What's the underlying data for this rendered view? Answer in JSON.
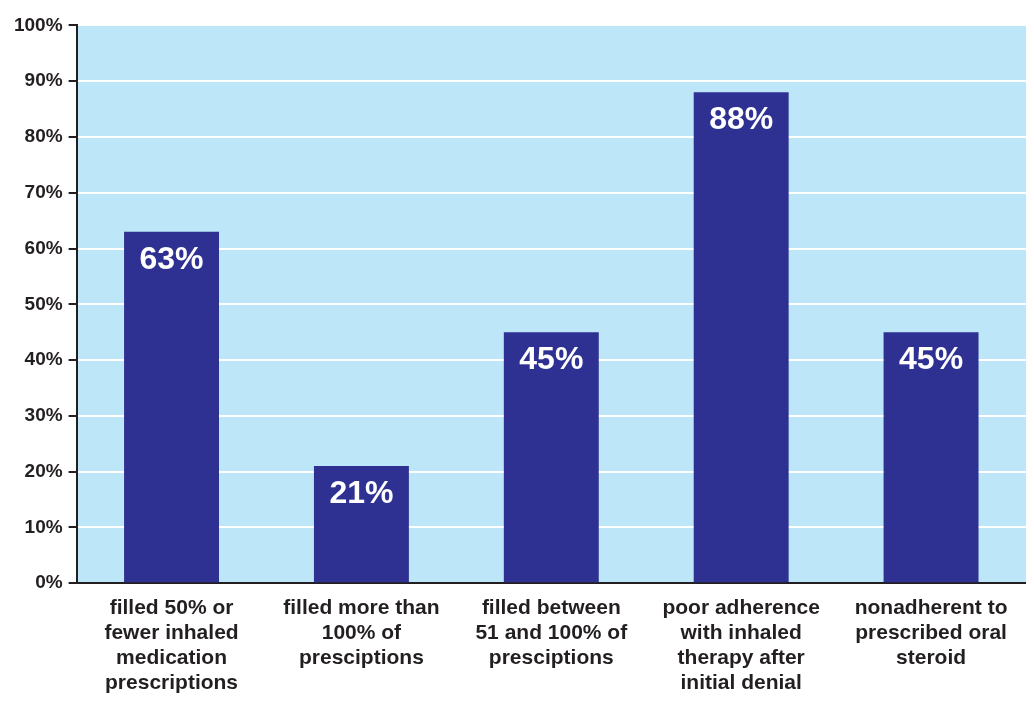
{
  "chart_data": {
    "type": "bar",
    "categories": [
      "filled 50% or fewer inhaled medication prescriptions",
      "filled more than 100% of presciptions",
      "filled between 51 and 100% of presciptions",
      "poor adherence with inhaled therapy after initial denial",
      "nonadherent to prescribed oral steroid"
    ],
    "values": [
      63,
      21,
      45,
      88,
      45
    ],
    "color": "#2e3192",
    "ylim": [
      0,
      100
    ],
    "yticks": [
      {
        "value": 0,
        "label": "0%"
      },
      {
        "value": 10,
        "label": "10%"
      },
      {
        "value": 20,
        "label": "20%"
      },
      {
        "value": 30,
        "label": "30%"
      },
      {
        "value": 40,
        "label": "40%"
      },
      {
        "value": 50,
        "label": "50%"
      },
      {
        "value": 60,
        "label": "60%"
      },
      {
        "value": 70,
        "label": "70%"
      },
      {
        "value": 80,
        "label": "80%"
      },
      {
        "value": 90,
        "label": "90%"
      },
      {
        "value": 100,
        "label": "100%"
      }
    ],
    "value_labels": [
      "63%",
      "21%",
      "45%",
      "88%",
      "45%"
    ],
    "grid": "y",
    "legend": false
  }
}
